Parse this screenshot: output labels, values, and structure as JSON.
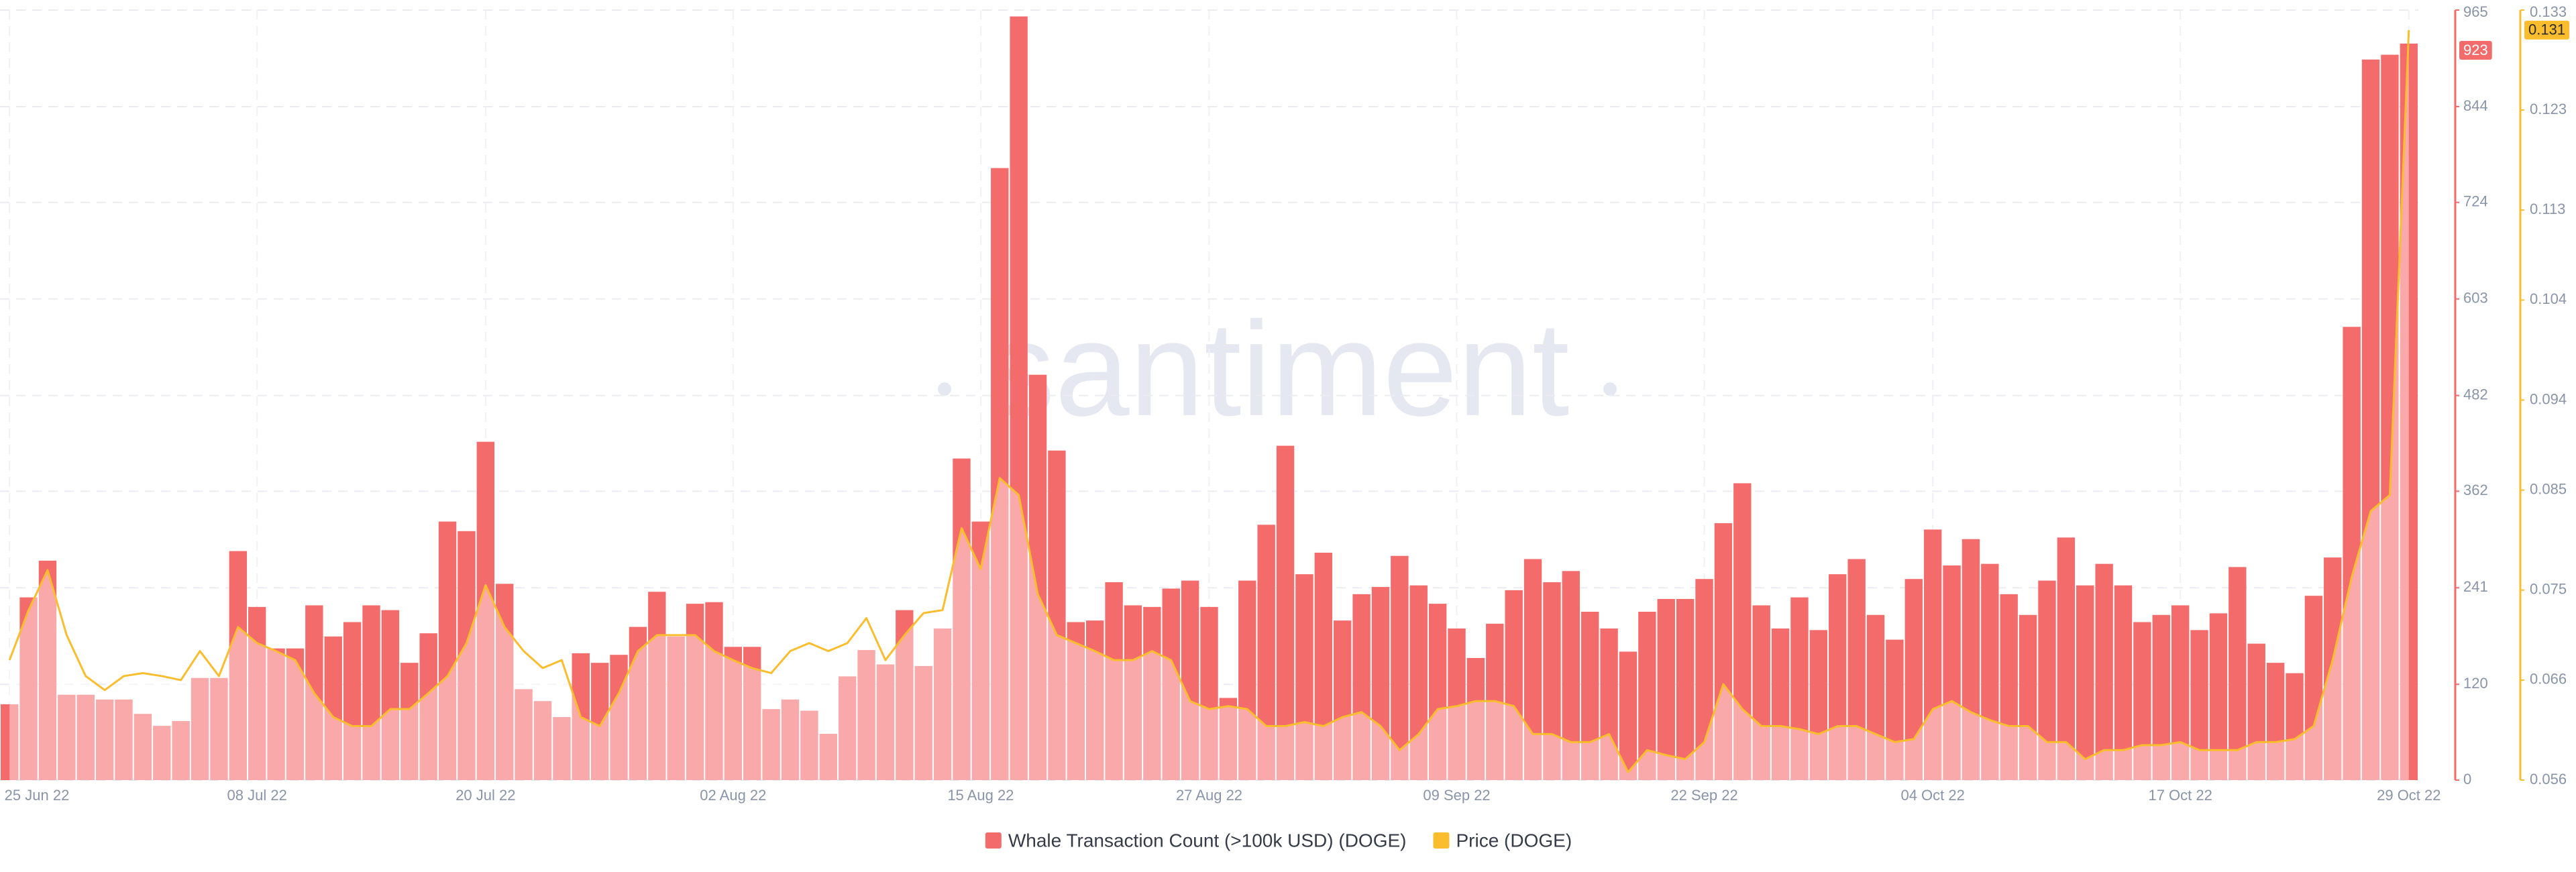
{
  "chart_data": {
    "type": "bar",
    "watermark": "santiment",
    "x": [
      "2022-06-25",
      "2022-06-26",
      "2022-06-27",
      "2022-06-28",
      "2022-06-29",
      "2022-06-30",
      "2022-07-01",
      "2022-07-02",
      "2022-07-03",
      "2022-07-04",
      "2022-07-05",
      "2022-07-06",
      "2022-07-07",
      "2022-07-08",
      "2022-07-09",
      "2022-07-10",
      "2022-07-11",
      "2022-07-12",
      "2022-07-13",
      "2022-07-14",
      "2022-07-15",
      "2022-07-16",
      "2022-07-17",
      "2022-07-18",
      "2022-07-19",
      "2022-07-20",
      "2022-07-21",
      "2022-07-22",
      "2022-07-23",
      "2022-07-24",
      "2022-07-25",
      "2022-07-26",
      "2022-07-27",
      "2022-07-28",
      "2022-07-29",
      "2022-07-30",
      "2022-07-31",
      "2022-08-01",
      "2022-08-02",
      "2022-08-03",
      "2022-08-04",
      "2022-08-05",
      "2022-08-06",
      "2022-08-07",
      "2022-08-08",
      "2022-08-09",
      "2022-08-10",
      "2022-08-11",
      "2022-08-12",
      "2022-08-13",
      "2022-08-14",
      "2022-08-15",
      "2022-08-16",
      "2022-08-17",
      "2022-08-18",
      "2022-08-19",
      "2022-08-20",
      "2022-08-21",
      "2022-08-22",
      "2022-08-23",
      "2022-08-24",
      "2022-08-25",
      "2022-08-26",
      "2022-08-27",
      "2022-08-28",
      "2022-08-29",
      "2022-08-30",
      "2022-08-31",
      "2022-09-01",
      "2022-09-02",
      "2022-09-03",
      "2022-09-04",
      "2022-09-05",
      "2022-09-06",
      "2022-09-07",
      "2022-09-08",
      "2022-09-09",
      "2022-09-10",
      "2022-09-11",
      "2022-09-12",
      "2022-09-13",
      "2022-09-14",
      "2022-09-15",
      "2022-09-16",
      "2022-09-17",
      "2022-09-18",
      "2022-09-19",
      "2022-09-20",
      "2022-09-21",
      "2022-09-22",
      "2022-09-23",
      "2022-09-24",
      "2022-09-25",
      "2022-09-26",
      "2022-09-27",
      "2022-09-28",
      "2022-09-29",
      "2022-09-30",
      "2022-10-01",
      "2022-10-02",
      "2022-10-03",
      "2022-10-04",
      "2022-10-05",
      "2022-10-06",
      "2022-10-07",
      "2022-10-08",
      "2022-10-09",
      "2022-10-10",
      "2022-10-11",
      "2022-10-12",
      "2022-10-13",
      "2022-10-14",
      "2022-10-15",
      "2022-10-16",
      "2022-10-17",
      "2022-10-18",
      "2022-10-19",
      "2022-10-20",
      "2022-10-21",
      "2022-10-22",
      "2022-10-23",
      "2022-10-24",
      "2022-10-25",
      "2022-10-26",
      "2022-10-27",
      "2022-10-28",
      "2022-10-29"
    ],
    "xticks": [
      {
        "value": "2022-06-25",
        "label": "25 Jun 22"
      },
      {
        "value": "2022-07-08",
        "label": "08 Jul 22"
      },
      {
        "value": "2022-07-20",
        "label": "20 Jul 22"
      },
      {
        "value": "2022-08-02",
        "label": "02 Aug 22"
      },
      {
        "value": "2022-08-15",
        "label": "15 Aug 22"
      },
      {
        "value": "2022-08-27",
        "label": "27 Aug 22"
      },
      {
        "value": "2022-09-09",
        "label": "09 Sep 22"
      },
      {
        "value": "2022-09-22",
        "label": "22 Sep 22"
      },
      {
        "value": "2022-10-04",
        "label": "04 Oct 22"
      },
      {
        "value": "2022-10-17",
        "label": "17 Oct 22"
      },
      {
        "value": "2022-10-29",
        "label": "29 Oct 22"
      }
    ],
    "ylim": [
      0,
      965
    ],
    "yticks": [
      0,
      120,
      241,
      362,
      482,
      603,
      724,
      844,
      965
    ],
    "y2lim": [
      0.056,
      0.133
    ],
    "y2ticks": [
      0.056,
      0.066,
      0.075,
      0.085,
      0.094,
      0.104,
      0.113,
      0.123,
      0.133
    ],
    "grid": true,
    "legend": "bottom",
    "series": [
      {
        "name": "Whale Transaction Count (>100k USD) (DOGE)",
        "type": "bar",
        "color": "#f46b6b",
        "axis": "y",
        "values": [
          95,
          229,
          275,
          107,
          107,
          101,
          101,
          83,
          68,
          74,
          128,
          128,
          287,
          217,
          165,
          165,
          219,
          180,
          198,
          219,
          213,
          147,
          184,
          324,
          312,
          424,
          246,
          114,
          99,
          79,
          159,
          147,
          157,
          192,
          236,
          180,
          221,
          223,
          167,
          167,
          89,
          101,
          87,
          58,
          130,
          163,
          145,
          213,
          143,
          190,
          403,
          324,
          767,
          957,
          508,
          413,
          198,
          200,
          248,
          219,
          217,
          240,
          250,
          217,
          103,
          250,
          320,
          419,
          258,
          285,
          200,
          233,
          242,
          281,
          244,
          221,
          190,
          153,
          196,
          238,
          277,
          248,
          262,
          211,
          190,
          161,
          211,
          227,
          227,
          252,
          322,
          372,
          219,
          190,
          229,
          188,
          258,
          277,
          207,
          176,
          252,
          314,
          269,
          302,
          271,
          233,
          207,
          250,
          304,
          244,
          271,
          244,
          198,
          207,
          219,
          188,
          209,
          267,
          171,
          147,
          134,
          231,
          279,
          568,
          903,
          909,
          923
        ]
      },
      {
        "name": "Price (DOGE)",
        "type": "line",
        "color": "#f9bd2e",
        "axis": "y2",
        "values": [
          0.068,
          0.073,
          0.077,
          0.0705,
          0.0664,
          0.065,
          0.0664,
          0.0667,
          0.0664,
          0.066,
          0.0689,
          0.0664,
          0.0713,
          0.0697,
          0.0689,
          0.068,
          0.0647,
          0.0623,
          0.0614,
          0.0614,
          0.0631,
          0.0631,
          0.0647,
          0.0664,
          0.0697,
          0.0755,
          0.0713,
          0.0689,
          0.0672,
          0.068,
          0.0623,
          0.0614,
          0.0647,
          0.0689,
          0.0705,
          0.0705,
          0.0705,
          0.0689,
          0.068,
          0.0672,
          0.0667,
          0.0689,
          0.0697,
          0.0689,
          0.0697,
          0.0722,
          0.068,
          0.0705,
          0.0727,
          0.073,
          0.0812,
          0.0771,
          0.0862,
          0.0845,
          0.0746,
          0.0705,
          0.0697,
          0.0689,
          0.068,
          0.068,
          0.0689,
          0.068,
          0.0639,
          0.0631,
          0.0634,
          0.0631,
          0.0614,
          0.0614,
          0.0618,
          0.0614,
          0.0623,
          0.0628,
          0.0614,
          0.059,
          0.0606,
          0.0631,
          0.0634,
          0.0639,
          0.0639,
          0.0634,
          0.0606,
          0.0606,
          0.0598,
          0.0598,
          0.0606,
          0.0568,
          0.059,
          0.0585,
          0.0581,
          0.0598,
          0.0656,
          0.0631,
          0.0614,
          0.0614,
          0.0611,
          0.0606,
          0.0614,
          0.0614,
          0.0606,
          0.0598,
          0.0601,
          0.0631,
          0.0639,
          0.0628,
          0.062,
          0.0614,
          0.0614,
          0.0598,
          0.0598,
          0.0581,
          0.059,
          0.059,
          0.0595,
          0.0595,
          0.0598,
          0.059,
          0.059,
          0.059,
          0.0598,
          0.0598,
          0.0601,
          0.0614,
          0.068,
          0.0763,
          0.0829,
          0.0845,
          0.131
        ]
      }
    ]
  }
}
